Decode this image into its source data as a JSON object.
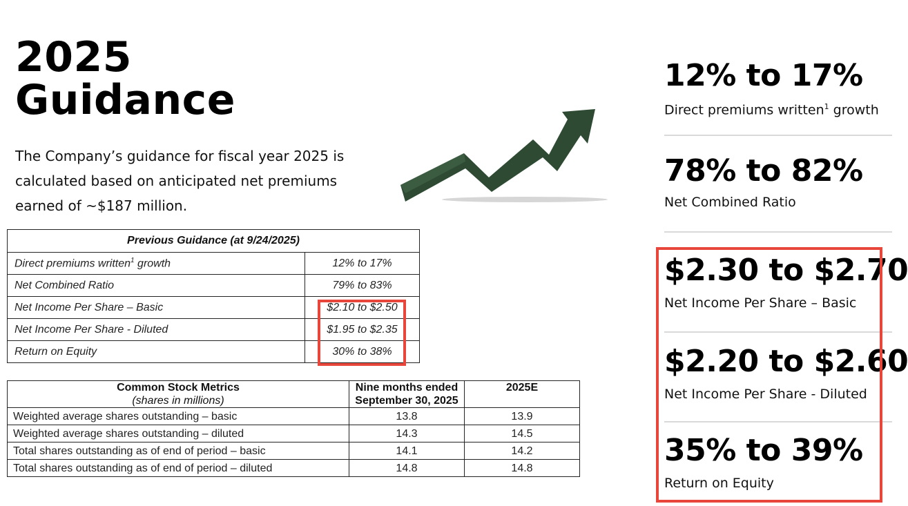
{
  "title": {
    "line1": "2025",
    "line2": "Guidance"
  },
  "intro": "The Company’s guidance for fiscal year 2025 is calculated based on anticipated net premiums earned of ~$187 million.",
  "previous_guidance": {
    "header": "Previous Guidance (at 9/24/2025)",
    "rows": [
      {
        "label": "Direct premiums written",
        "sup": "1",
        "label_suffix": " growth",
        "value": "12% to 17%"
      },
      {
        "label": "Net Combined Ratio",
        "sup": "",
        "label_suffix": "",
        "value": "79% to 83%"
      },
      {
        "label": "Net Income Per Share – Basic",
        "sup": "",
        "label_suffix": "",
        "value": "$2.10 to $2.50"
      },
      {
        "label": "Net Income Per Share  - Diluted",
        "sup": "",
        "label_suffix": "",
        "value": "$1.95 to $2.35"
      },
      {
        "label": "Return on Equity",
        "sup": "",
        "label_suffix": "",
        "value": "30% to 38%"
      }
    ]
  },
  "stock_metrics": {
    "header_title": "Common Stock Metrics",
    "header_sub": "(shares in millions)",
    "col2_line1": "Nine months ended",
    "col2_line2": "September 30, 2025",
    "col3": "2025E",
    "rows": [
      {
        "label": "Weighted average shares outstanding – basic",
        "nine_months": "13.8",
        "estimate": "13.9"
      },
      {
        "label": "Weighted average shares outstanding – diluted",
        "nine_months": "14.3",
        "estimate": "14.5"
      },
      {
        "label": "Total shares outstanding as of end of period – basic",
        "nine_months": "14.1",
        "estimate": "14.2"
      },
      {
        "label": "Total shares outstanding as of end of period – diluted",
        "nine_months": "14.8",
        "estimate": "14.8"
      }
    ]
  },
  "current_guidance": [
    {
      "value": "12% to 17%",
      "label": "Direct premiums written",
      "sup": "1",
      "label_suffix": " growth"
    },
    {
      "value": "78% to 82%",
      "label": "Net Combined Ratio",
      "sup": "",
      "label_suffix": ""
    },
    {
      "value": "$2.30 to $2.70",
      "label": "Net Income Per Share – Basic",
      "sup": "",
      "label_suffix": ""
    },
    {
      "value": "$2.20 to $2.60",
      "label": "Net Income Per Share  - Diluted",
      "sup": "",
      "label_suffix": ""
    },
    {
      "value": "35% to 39%",
      "label": "Return on Equity",
      "sup": "",
      "label_suffix": ""
    }
  ],
  "colors": {
    "arrow": "#2e4a33",
    "highlight": "#e8463b",
    "divider": "#d9d9d9"
  },
  "icons": {
    "arrow": "growth-arrow-icon"
  }
}
